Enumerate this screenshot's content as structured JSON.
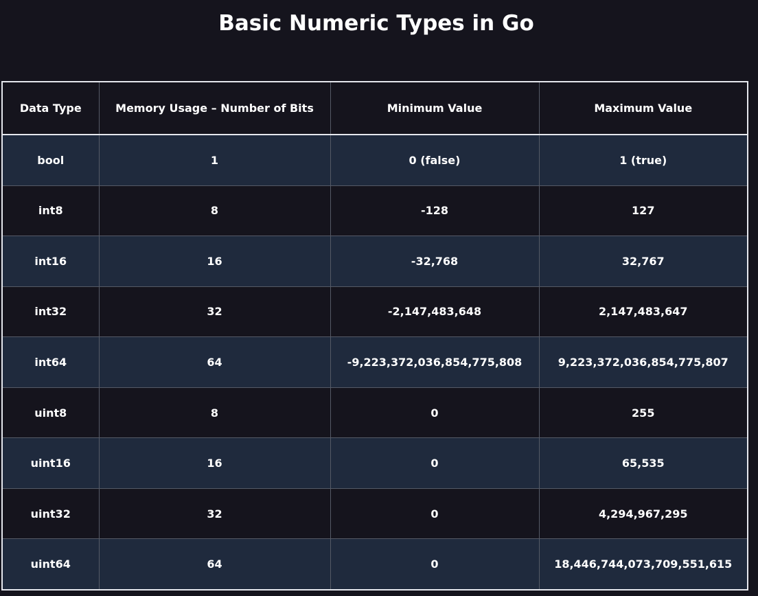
{
  "title": "Basic Numeric Types in Go",
  "table": {
    "headers": [
      "Data Type",
      "Memory Usage – Number of Bits",
      "Minimum Value",
      "Maximum Value"
    ],
    "rows": [
      [
        "bool",
        "1",
        "0 (false)",
        "1 (true)"
      ],
      [
        "int8",
        "8",
        "-128",
        "127"
      ],
      [
        "int16",
        "16",
        "-32,768",
        "32,767"
      ],
      [
        "int32",
        "32",
        "-2,147,483,648",
        "2,147,483,647"
      ],
      [
        "int64",
        "64",
        "-9,223,372,036,854,775,808",
        "9,223,372,036,854,775,807"
      ],
      [
        "uint8",
        "8",
        "0",
        "255"
      ],
      [
        "uint16",
        "16",
        "0",
        "65,535"
      ],
      [
        "uint32",
        "32",
        "0",
        "4,294,967,295"
      ],
      [
        "uint64",
        "64",
        "0",
        "18,446,744,073,709,551,615"
      ]
    ]
  },
  "colors": {
    "background": "#15141d",
    "stripe": "#1f2a3d",
    "border": "#e6e8ee",
    "text": "#ffffff"
  }
}
